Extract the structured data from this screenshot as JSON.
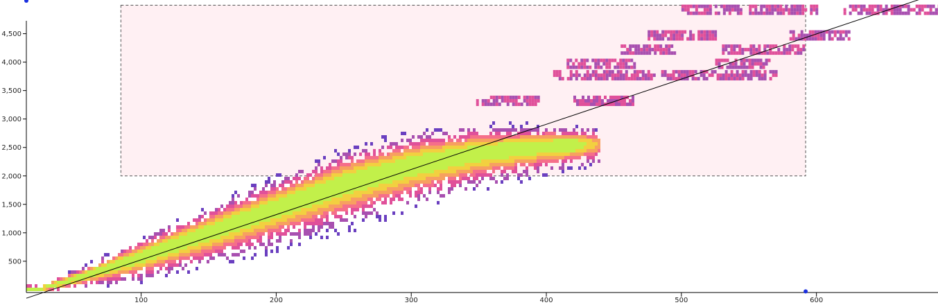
{
  "chart_data": {
    "type": "heatmap",
    "title": "",
    "xlabel": "",
    "ylabel": "",
    "x_ticks": [
      100,
      200,
      300,
      400,
      500,
      600
    ],
    "y_ticks": [
      500,
      1000,
      1500,
      2000,
      2500,
      3000,
      3500,
      4000,
      4500
    ],
    "x_tick_labels": [
      "100",
      "200",
      "300",
      "400",
      "500",
      "600"
    ],
    "y_tick_labels": [
      "500",
      "1,000",
      "1,500",
      "2,000",
      "2,500",
      "3,000",
      "3,500",
      "4,000",
      "4,500"
    ],
    "xlim": [
      15,
      690
    ],
    "ylim": [
      -50,
      4970
    ],
    "color_scale": [
      "#6a3fc0",
      "#a850b0",
      "#e0509a",
      "#f56f8a",
      "#f7a060",
      "#f2d040",
      "#c2f04a"
    ],
    "selection": {
      "x": [
        85,
        592
      ],
      "y": [
        2000,
        5000
      ]
    },
    "regression_line": {
      "x": [
        15,
        690
      ],
      "y": [
        -150,
        5210
      ]
    },
    "handles": {
      "top_left": {
        "x": 15,
        "y": 5080
      },
      "bottom_right": {
        "x": 592,
        "y": -30
      }
    },
    "ridge": [
      {
        "x": 25,
        "y": 50,
        "spread": 60
      },
      {
        "x": 60,
        "y": 300,
        "spread": 150
      },
      {
        "x": 100,
        "y": 620,
        "spread": 280
      },
      {
        "x": 150,
        "y": 1050,
        "spread": 380
      },
      {
        "x": 200,
        "y": 1480,
        "spread": 450
      },
      {
        "x": 250,
        "y": 1900,
        "spread": 500
      },
      {
        "x": 300,
        "y": 2230,
        "spread": 480
      },
      {
        "x": 350,
        "y": 2450,
        "spread": 400
      },
      {
        "x": 400,
        "y": 2560,
        "spread": 300
      },
      {
        "x": 440,
        "y": 2600,
        "spread": 230
      }
    ],
    "upper_bands": [
      {
        "y": 4950,
        "x_ranges": [
          [
            500,
            545
          ],
          [
            550,
            600
          ],
          [
            620,
            690
          ]
        ]
      },
      {
        "y": 4500,
        "x_ranges": [
          [
            475,
            525
          ],
          [
            580,
            625
          ]
        ]
      },
      {
        "y": 4250,
        "x_ranges": [
          [
            455,
            495
          ],
          [
            530,
            590
          ]
        ]
      },
      {
        "y": 4000,
        "x_ranges": [
          [
            415,
            465
          ],
          [
            525,
            565
          ]
        ]
      },
      {
        "y": 3800,
        "x_ranges": [
          [
            405,
            480
          ],
          [
            485,
            570
          ]
        ]
      },
      {
        "y": 3350,
        "x_ranges": [
          [
            348,
            395
          ],
          [
            420,
            465
          ]
        ]
      }
    ]
  }
}
